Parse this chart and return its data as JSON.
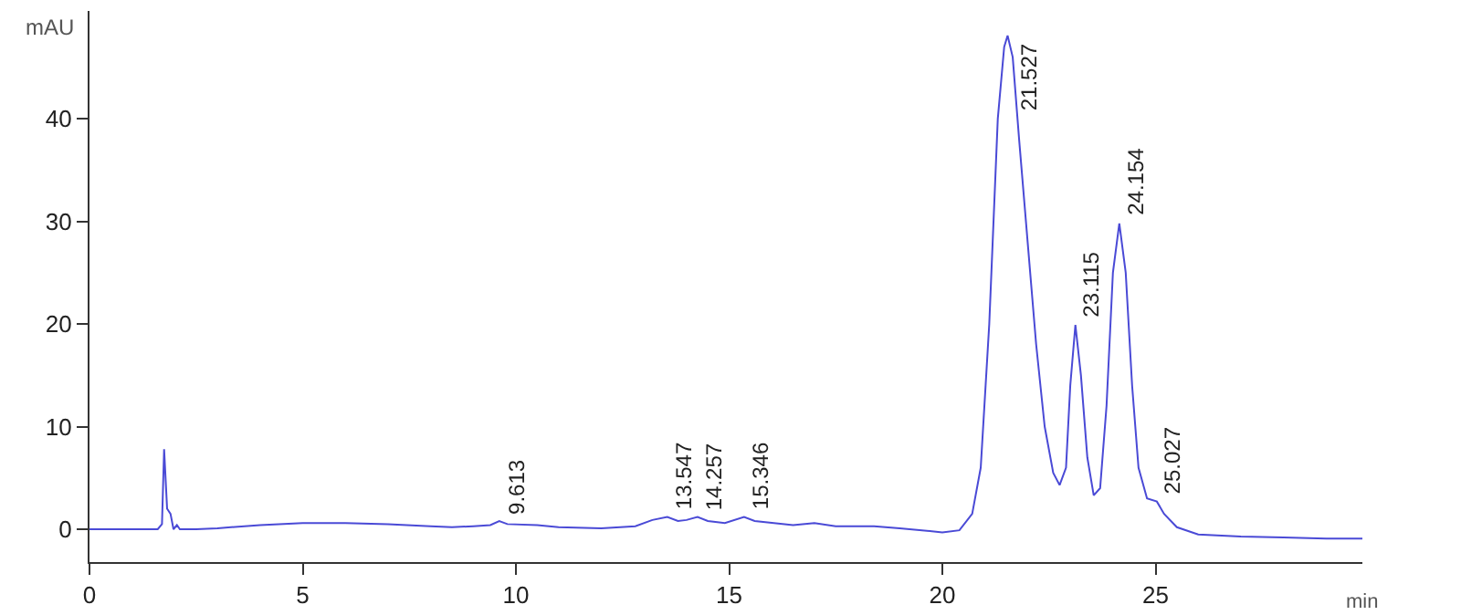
{
  "chart_data": {
    "type": "line",
    "xlabel": "min",
    "ylabel": "mAU",
    "x": [
      0,
      1.6,
      1.7,
      1.75,
      1.82,
      1.9,
      1.97,
      2.05,
      2.12,
      2.5,
      3,
      4,
      5,
      6,
      7,
      8,
      8.5,
      9,
      9.4,
      9.61,
      9.8,
      10.5,
      11,
      12,
      12.8,
      13.2,
      13.55,
      13.8,
      14.0,
      14.26,
      14.5,
      14.9,
      15.35,
      15.6,
      16.5,
      17,
      17.5,
      18.4,
      19,
      20,
      20.4,
      20.7,
      20.9,
      21.1,
      21.3,
      21.45,
      21.53,
      21.65,
      21.8,
      22,
      22.2,
      22.4,
      22.6,
      22.75,
      22.9,
      23.0,
      23.12,
      23.25,
      23.4,
      23.55,
      23.7,
      23.85,
      24.0,
      24.15,
      24.3,
      24.45,
      24.6,
      24.8,
      25.03,
      25.2,
      25.5,
      26,
      27,
      28,
      29,
      29.85
    ],
    "series": [
      {
        "color": "#4a4ad6",
        "values": [
          0,
          0,
          0.5,
          7.8,
          2,
          1.5,
          0,
          0.4,
          0,
          0,
          0.1,
          0.4,
          0.6,
          0.6,
          0.5,
          0.3,
          0.2,
          0.3,
          0.4,
          0.8,
          0.5,
          0.4,
          0.2,
          0.1,
          0.3,
          0.9,
          1.2,
          0.8,
          0.9,
          1.2,
          0.8,
          0.6,
          1.2,
          0.8,
          0.4,
          0.6,
          0.3,
          0.3,
          0.1,
          -0.3,
          -0.1,
          1.5,
          6,
          20,
          40,
          47,
          48.1,
          46,
          38,
          28,
          18,
          10,
          5.5,
          4.3,
          6,
          14,
          19.9,
          15,
          7,
          3.3,
          4,
          12,
          25,
          29.8,
          25,
          14,
          6,
          3,
          2.7,
          1.5,
          0.2,
          -0.5,
          -0.7,
          -0.8,
          -0.9,
          -0.9
        ]
      }
    ],
    "xlim": [
      0,
      29.85
    ],
    "ylim": [
      -3.2,
      50.5
    ],
    "xticks": [
      0,
      5,
      10,
      15,
      20,
      25
    ],
    "yticks": [
      0,
      10,
      20,
      30,
      40
    ],
    "grid": false,
    "marker": "none",
    "line_style": "solid",
    "annotations": [
      {
        "text": "9.613",
        "x": 9.613,
        "y": 0.8
      },
      {
        "text": "13.547",
        "x": 13.547,
        "y": 1.2
      },
      {
        "text": "14.257",
        "x": 14.257,
        "y": 1.2
      },
      {
        "text": "15.346",
        "x": 15.346,
        "y": 1.2
      },
      {
        "text": "21.527",
        "x": 21.527,
        "y": 48.1
      },
      {
        "text": "23.115",
        "x": 23.115,
        "y": 19.9
      },
      {
        "text": "24.154",
        "x": 24.154,
        "y": 29.8
      },
      {
        "text": "25.027",
        "x": 25.027,
        "y": 2.7
      }
    ]
  }
}
